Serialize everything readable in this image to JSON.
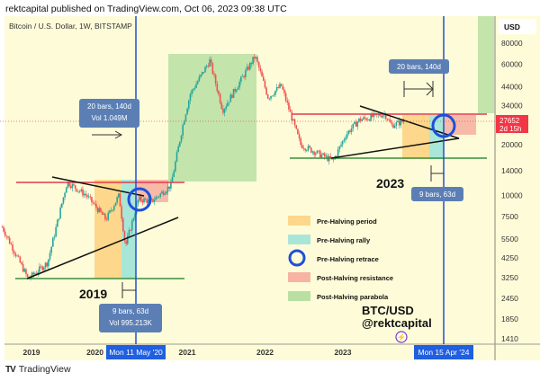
{
  "header": {
    "published": "rektcapital published on TradingView.com, Oct 06, 2023 09:38 UTC"
  },
  "chart_data": {
    "type": "candlestick",
    "title": "Bitcoin / U.S. Dollar, 1W, BITSTAMP",
    "currency": "USD",
    "y_scale": "log",
    "ylim": [
      1300,
      100000
    ],
    "y_ticks": [
      "80000",
      "60000",
      "44000",
      "34000",
      "20000",
      "14000",
      "10000",
      "7500",
      "5500",
      "4250",
      "3250",
      "2450",
      "1850",
      "1410"
    ],
    "x_ticks": [
      "2019",
      "2020",
      "2021",
      "2022",
      "2023"
    ],
    "price_path": [
      [
        "2018-08",
        6500
      ],
      [
        "2018-12",
        3200
      ],
      [
        "2019-03",
        4000
      ],
      [
        "2019-06",
        12000
      ],
      [
        "2019-09",
        10000
      ],
      [
        "2019-12",
        7200
      ],
      [
        "2020-02",
        10000
      ],
      [
        "2020-03",
        5000
      ],
      [
        "2020-05",
        9500
      ],
      [
        "2020-07",
        9200
      ],
      [
        "2020-10",
        11500
      ],
      [
        "2020-12",
        28000
      ],
      [
        "2021-01",
        40000
      ],
      [
        "2021-04",
        63000
      ],
      [
        "2021-06",
        32000
      ],
      [
        "2021-11",
        67000
      ],
      [
        "2022-01",
        38000
      ],
      [
        "2022-03",
        45000
      ],
      [
        "2022-06",
        20000
      ],
      [
        "2022-11",
        16000
      ],
      [
        "2023-01",
        23000
      ],
      [
        "2023-03",
        28000
      ],
      [
        "2023-07",
        30500
      ],
      [
        "2023-08",
        26000
      ],
      [
        "2023-10",
        27652
      ]
    ],
    "last_price": {
      "value": "27652",
      "countdown": "2d 15h",
      "color": "#f23645"
    },
    "crosshair_dates": [
      "Mon 11 May '20",
      "Mon 15 Apr '24"
    ],
    "measure_labels": {
      "m2019_top": {
        "line1": "20 bars, 140d",
        "line2": "Vol 1.049M"
      },
      "m2019_bottom": {
        "line1": "9 bars, 63d",
        "line2": "Vol 995.213K"
      },
      "m2023_top": {
        "line1": "20 bars, 140d"
      },
      "m2023_bottom": {
        "line1": "9 bars, 63d"
      }
    },
    "annotations": {
      "y2019": "2019",
      "y2023": "2023",
      "sig1": "BTC/USD",
      "sig2": "@rektcapital"
    },
    "legend": [
      {
        "label": "Pre-Halving period",
        "color": "#fdd78b"
      },
      {
        "label": "Pre-Halving rally",
        "color": "#a8e6d8"
      },
      {
        "label": "Pre-Halving retrace",
        "color": "#1f4fd8"
      },
      {
        "label": "Post-Halving resistance",
        "color": "#f7b3a3"
      },
      {
        "label": "Post-Halving parabola",
        "color": "#b9dfa3"
      }
    ],
    "colors": {
      "bg": "#fefcd8",
      "up": "#26a69a",
      "down": "#ef5350",
      "crosshair": "#1f4fd8",
      "resistance": "#e0394a",
      "support": "#3a8f3a"
    }
  },
  "footer": {
    "brand": "TradingView",
    "logo": "TV"
  }
}
